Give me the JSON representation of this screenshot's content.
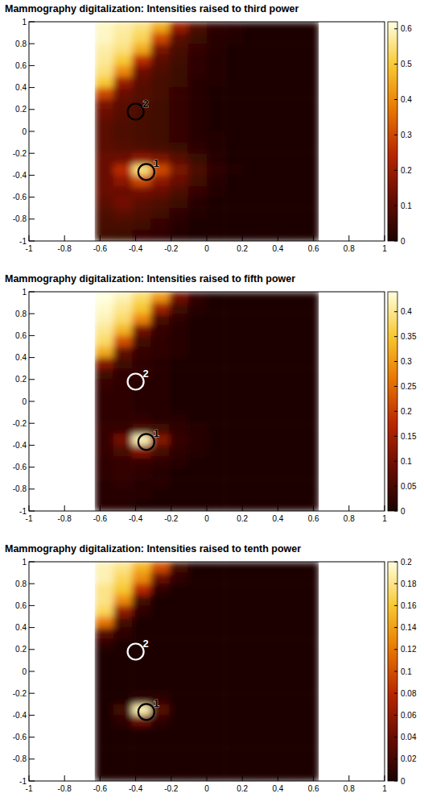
{
  "chart_data": [
    {
      "type": "heatmap",
      "title": "Mammography digitalization: Intensities raised to third power",
      "xlim": [
        -1,
        1
      ],
      "ylim": [
        -1,
        1
      ],
      "xticks": [
        -1,
        -0.8,
        -0.6,
        -0.4,
        -0.2,
        0,
        0.2,
        0.4,
        0.6,
        0.8,
        1
      ],
      "yticks": [
        -1,
        -0.8,
        -0.6,
        -0.4,
        -0.2,
        0,
        0.2,
        0.4,
        0.6,
        0.8,
        1
      ],
      "x_edges": [
        -0.63,
        -0.525,
        -0.42,
        -0.315,
        -0.21,
        -0.105,
        0,
        0.105,
        0.21,
        0.315,
        0.42,
        0.525,
        0.63
      ],
      "y_edges": [
        1,
        0.9,
        0.8,
        0.7,
        0.6,
        0.5,
        0.4,
        0.3,
        0.2,
        0.1,
        0,
        -0.1,
        -0.2,
        -0.3,
        -0.4,
        -0.5,
        -0.6,
        -0.7,
        -0.8,
        -0.9,
        -1
      ],
      "cells": [
        [
          0.6,
          0.58,
          0.55,
          0.45,
          0.2,
          0.08,
          0.03,
          0.02,
          0,
          0,
          0,
          0
        ],
        [
          0.6,
          0.57,
          0.52,
          0.3,
          0.1,
          0.05,
          0.02,
          0.01,
          0,
          0,
          0,
          0
        ],
        [
          0.58,
          0.55,
          0.45,
          0.15,
          0.07,
          0.04,
          0.02,
          0,
          0,
          0,
          0,
          0
        ],
        [
          0.57,
          0.5,
          0.25,
          0.1,
          0.06,
          0.03,
          0.01,
          0,
          0,
          0,
          0,
          0
        ],
        [
          0.55,
          0.4,
          0.13,
          0.08,
          0.05,
          0.03,
          0.01,
          0,
          0,
          0,
          0,
          0
        ],
        [
          0.5,
          0.2,
          0.1,
          0.07,
          0.05,
          0.02,
          0.01,
          0,
          0,
          0,
          0,
          0
        ],
        [
          0.3,
          0.12,
          0.09,
          0.07,
          0.04,
          0.02,
          0,
          0,
          0,
          0,
          0,
          0
        ],
        [
          0.15,
          0.1,
          0.08,
          0.06,
          0.04,
          0.02,
          0,
          0,
          0,
          0,
          0,
          0
        ],
        [
          0.12,
          0.09,
          0.07,
          0.06,
          0.04,
          0.02,
          0,
          0,
          0,
          0,
          0,
          0
        ],
        [
          0.1,
          0.08,
          0.07,
          0.06,
          0.04,
          0.02,
          0,
          0,
          0,
          0,
          0,
          0
        ],
        [
          0.1,
          0.08,
          0.07,
          0.06,
          0.04,
          0.02,
          0.01,
          0,
          0,
          0,
          0,
          0
        ],
        [
          0.1,
          0.09,
          0.08,
          0.07,
          0.05,
          0.03,
          0.01,
          0,
          0,
          0,
          0,
          0
        ],
        [
          0.12,
          0.13,
          0.18,
          0.15,
          0.1,
          0.05,
          0.02,
          0,
          0,
          0,
          0,
          0
        ],
        [
          0.12,
          0.25,
          0.55,
          0.3,
          0.15,
          0.08,
          0.03,
          0.01,
          0,
          0,
          0,
          0
        ],
        [
          0.12,
          0.18,
          0.3,
          0.18,
          0.12,
          0.06,
          0.02,
          0,
          0,
          0,
          0,
          0
        ],
        [
          0.12,
          0.12,
          0.14,
          0.12,
          0.08,
          0.04,
          0.01,
          0,
          0,
          0,
          0,
          0
        ],
        [
          0.1,
          0.14,
          0.1,
          0.08,
          0.05,
          0.02,
          0,
          0,
          0,
          0,
          0,
          0
        ],
        [
          0.08,
          0.1,
          0.08,
          0.06,
          0.03,
          0.01,
          0,
          0,
          0,
          0,
          0,
          0
        ],
        [
          0.07,
          0.07,
          0.06,
          0.04,
          0.02,
          0,
          0,
          0,
          0,
          0,
          0,
          0
        ],
        [
          0.06,
          0.05,
          0.04,
          0.03,
          0.01,
          0,
          0,
          0,
          0,
          0,
          0,
          0
        ]
      ],
      "colorbar": {
        "range": [
          0,
          0.62
        ],
        "ticks": [
          0,
          0.1,
          0.2,
          0.3,
          0.4,
          0.5,
          0.6
        ]
      },
      "annotations": [
        {
          "label": "2",
          "x": -0.4,
          "y": 0.18,
          "color": "#000000"
        },
        {
          "label": "1",
          "x": -0.34,
          "y": -0.37,
          "color": "#000000"
        }
      ]
    },
    {
      "type": "heatmap",
      "title": "Mammography digitalization: Intensities raised to fifth power",
      "xlim": [
        -1,
        1
      ],
      "ylim": [
        -1,
        1
      ],
      "xticks": [
        -1,
        -0.8,
        -0.6,
        -0.4,
        -0.2,
        0,
        0.2,
        0.4,
        0.6,
        0.8,
        1
      ],
      "yticks": [
        -1,
        -0.8,
        -0.6,
        -0.4,
        -0.2,
        0,
        0.2,
        0.4,
        0.6,
        0.8,
        1
      ],
      "x_edges": [
        -0.63,
        -0.525,
        -0.42,
        -0.315,
        -0.21,
        -0.105,
        0,
        0.105,
        0.21,
        0.315,
        0.42,
        0.525,
        0.63
      ],
      "y_edges": [
        1,
        0.9,
        0.8,
        0.7,
        0.6,
        0.5,
        0.4,
        0.3,
        0.2,
        0.1,
        0,
        -0.1,
        -0.2,
        -0.3,
        -0.4,
        -0.5,
        -0.6,
        -0.7,
        -0.8,
        -0.9,
        -1
      ],
      "cells": [
        [
          0.44,
          0.42,
          0.38,
          0.3,
          0.1,
          0.02,
          0,
          0,
          0,
          0,
          0,
          0
        ],
        [
          0.43,
          0.4,
          0.35,
          0.15,
          0.04,
          0.01,
          0,
          0,
          0,
          0,
          0,
          0
        ],
        [
          0.42,
          0.38,
          0.28,
          0.05,
          0.02,
          0,
          0,
          0,
          0,
          0,
          0,
          0
        ],
        [
          0.4,
          0.33,
          0.1,
          0.03,
          0.01,
          0,
          0,
          0,
          0,
          0,
          0,
          0
        ],
        [
          0.38,
          0.22,
          0.04,
          0.02,
          0.01,
          0,
          0,
          0,
          0,
          0,
          0,
          0
        ],
        [
          0.32,
          0.08,
          0.03,
          0.02,
          0.01,
          0,
          0,
          0,
          0,
          0,
          0,
          0
        ],
        [
          0.12,
          0.04,
          0.02,
          0.01,
          0,
          0,
          0,
          0,
          0,
          0,
          0,
          0
        ],
        [
          0.04,
          0.02,
          0.02,
          0.01,
          0,
          0,
          0,
          0,
          0,
          0,
          0,
          0
        ],
        [
          0.03,
          0.02,
          0.01,
          0.01,
          0,
          0,
          0,
          0,
          0,
          0,
          0,
          0
        ],
        [
          0.02,
          0.02,
          0.01,
          0.01,
          0,
          0,
          0,
          0,
          0,
          0,
          0,
          0
        ],
        [
          0.02,
          0.02,
          0.01,
          0.01,
          0,
          0,
          0,
          0,
          0,
          0,
          0,
          0
        ],
        [
          0.02,
          0.02,
          0.02,
          0.01,
          0.01,
          0,
          0,
          0,
          0,
          0,
          0,
          0
        ],
        [
          0.03,
          0.03,
          0.05,
          0.04,
          0.02,
          0.01,
          0,
          0,
          0,
          0,
          0,
          0
        ],
        [
          0.03,
          0.1,
          0.42,
          0.12,
          0.03,
          0.01,
          0,
          0,
          0,
          0,
          0,
          0
        ],
        [
          0.03,
          0.05,
          0.12,
          0.05,
          0.02,
          0.01,
          0,
          0,
          0,
          0,
          0,
          0
        ],
        [
          0.02,
          0.03,
          0.03,
          0.02,
          0.01,
          0,
          0,
          0,
          0,
          0,
          0,
          0
        ],
        [
          0.02,
          0.03,
          0.02,
          0.01,
          0,
          0,
          0,
          0,
          0,
          0,
          0,
          0
        ],
        [
          0.01,
          0.02,
          0.01,
          0.01,
          0,
          0,
          0,
          0,
          0,
          0,
          0,
          0
        ],
        [
          0.01,
          0.01,
          0.01,
          0,
          0,
          0,
          0,
          0,
          0,
          0,
          0,
          0
        ],
        [
          0.01,
          0.01,
          0,
          0,
          0,
          0,
          0,
          0,
          0,
          0,
          0,
          0
        ]
      ],
      "colorbar": {
        "range": [
          0,
          0.44
        ],
        "ticks": [
          0,
          0.05,
          0.1,
          0.15,
          0.2,
          0.25,
          0.3,
          0.35,
          0.4
        ]
      },
      "annotations": [
        {
          "label": "2",
          "x": -0.4,
          "y": 0.18,
          "color": "#ffffff"
        },
        {
          "label": "1",
          "x": -0.34,
          "y": -0.37,
          "color": "#000000"
        }
      ]
    },
    {
      "type": "heatmap",
      "title": "Mammography digitalization: Intensities raised to tenth power",
      "xlim": [
        -1,
        1
      ],
      "ylim": [
        -1,
        1
      ],
      "xticks": [
        -1,
        -0.8,
        -0.6,
        -0.4,
        -0.2,
        0,
        0.2,
        0.4,
        0.6,
        0.8,
        1
      ],
      "yticks": [
        -1,
        -0.8,
        -0.6,
        -0.4,
        -0.2,
        0,
        0.2,
        0.4,
        0.6,
        0.8,
        1
      ],
      "x_edges": [
        -0.63,
        -0.525,
        -0.42,
        -0.315,
        -0.21,
        -0.105,
        0,
        0.105,
        0.21,
        0.315,
        0.42,
        0.525,
        0.63
      ],
      "y_edges": [
        1,
        0.9,
        0.8,
        0.7,
        0.6,
        0.5,
        0.4,
        0.3,
        0.2,
        0.1,
        0,
        -0.1,
        -0.2,
        -0.3,
        -0.4,
        -0.5,
        -0.6,
        -0.7,
        -0.8,
        -0.9,
        -1
      ],
      "cells": [
        [
          0.19,
          0.18,
          0.15,
          0.1,
          0.02,
          0,
          0,
          0,
          0,
          0,
          0,
          0
        ],
        [
          0.19,
          0.17,
          0.13,
          0.04,
          0.01,
          0,
          0,
          0,
          0,
          0,
          0,
          0
        ],
        [
          0.18,
          0.16,
          0.08,
          0.01,
          0,
          0,
          0,
          0,
          0,
          0,
          0,
          0
        ],
        [
          0.18,
          0.13,
          0.02,
          0,
          0,
          0,
          0,
          0,
          0,
          0,
          0,
          0
        ],
        [
          0.17,
          0.06,
          0.01,
          0,
          0,
          0,
          0,
          0,
          0,
          0,
          0,
          0
        ],
        [
          0.12,
          0.02,
          0,
          0,
          0,
          0,
          0,
          0,
          0,
          0,
          0,
          0
        ],
        [
          0.03,
          0.01,
          0,
          0,
          0,
          0,
          0,
          0,
          0,
          0,
          0,
          0
        ],
        [
          0.01,
          0,
          0,
          0,
          0,
          0,
          0,
          0,
          0,
          0,
          0,
          0
        ],
        [
          0,
          0,
          0,
          0,
          0,
          0,
          0,
          0,
          0,
          0,
          0,
          0
        ],
        [
          0,
          0,
          0,
          0,
          0,
          0,
          0,
          0,
          0,
          0,
          0,
          0
        ],
        [
          0,
          0,
          0,
          0,
          0,
          0,
          0,
          0,
          0,
          0,
          0,
          0
        ],
        [
          0,
          0,
          0,
          0,
          0,
          0,
          0,
          0,
          0,
          0,
          0,
          0
        ],
        [
          0,
          0,
          0.01,
          0.01,
          0,
          0,
          0,
          0,
          0,
          0,
          0,
          0
        ],
        [
          0,
          0.02,
          0.19,
          0.03,
          0,
          0,
          0,
          0,
          0,
          0,
          0,
          0
        ],
        [
          0,
          0.01,
          0.04,
          0.01,
          0,
          0,
          0,
          0,
          0,
          0,
          0,
          0
        ],
        [
          0,
          0,
          0,
          0,
          0,
          0,
          0,
          0,
          0,
          0,
          0,
          0
        ],
        [
          0,
          0,
          0,
          0,
          0,
          0,
          0,
          0,
          0,
          0,
          0,
          0
        ],
        [
          0,
          0,
          0,
          0,
          0,
          0,
          0,
          0,
          0,
          0,
          0,
          0
        ],
        [
          0,
          0,
          0,
          0,
          0,
          0,
          0,
          0,
          0,
          0,
          0,
          0
        ],
        [
          0,
          0,
          0,
          0,
          0,
          0,
          0,
          0,
          0,
          0,
          0,
          0
        ]
      ],
      "colorbar": {
        "range": [
          0,
          0.2
        ],
        "ticks": [
          0,
          0.02,
          0.04,
          0.06,
          0.08,
          0.1,
          0.12,
          0.14,
          0.16,
          0.18,
          0.2
        ]
      },
      "annotations": [
        {
          "label": "2",
          "x": -0.4,
          "y": 0.18,
          "color": "#ffffff"
        },
        {
          "label": "1",
          "x": -0.34,
          "y": -0.37,
          "color": "#000000"
        }
      ]
    }
  ]
}
